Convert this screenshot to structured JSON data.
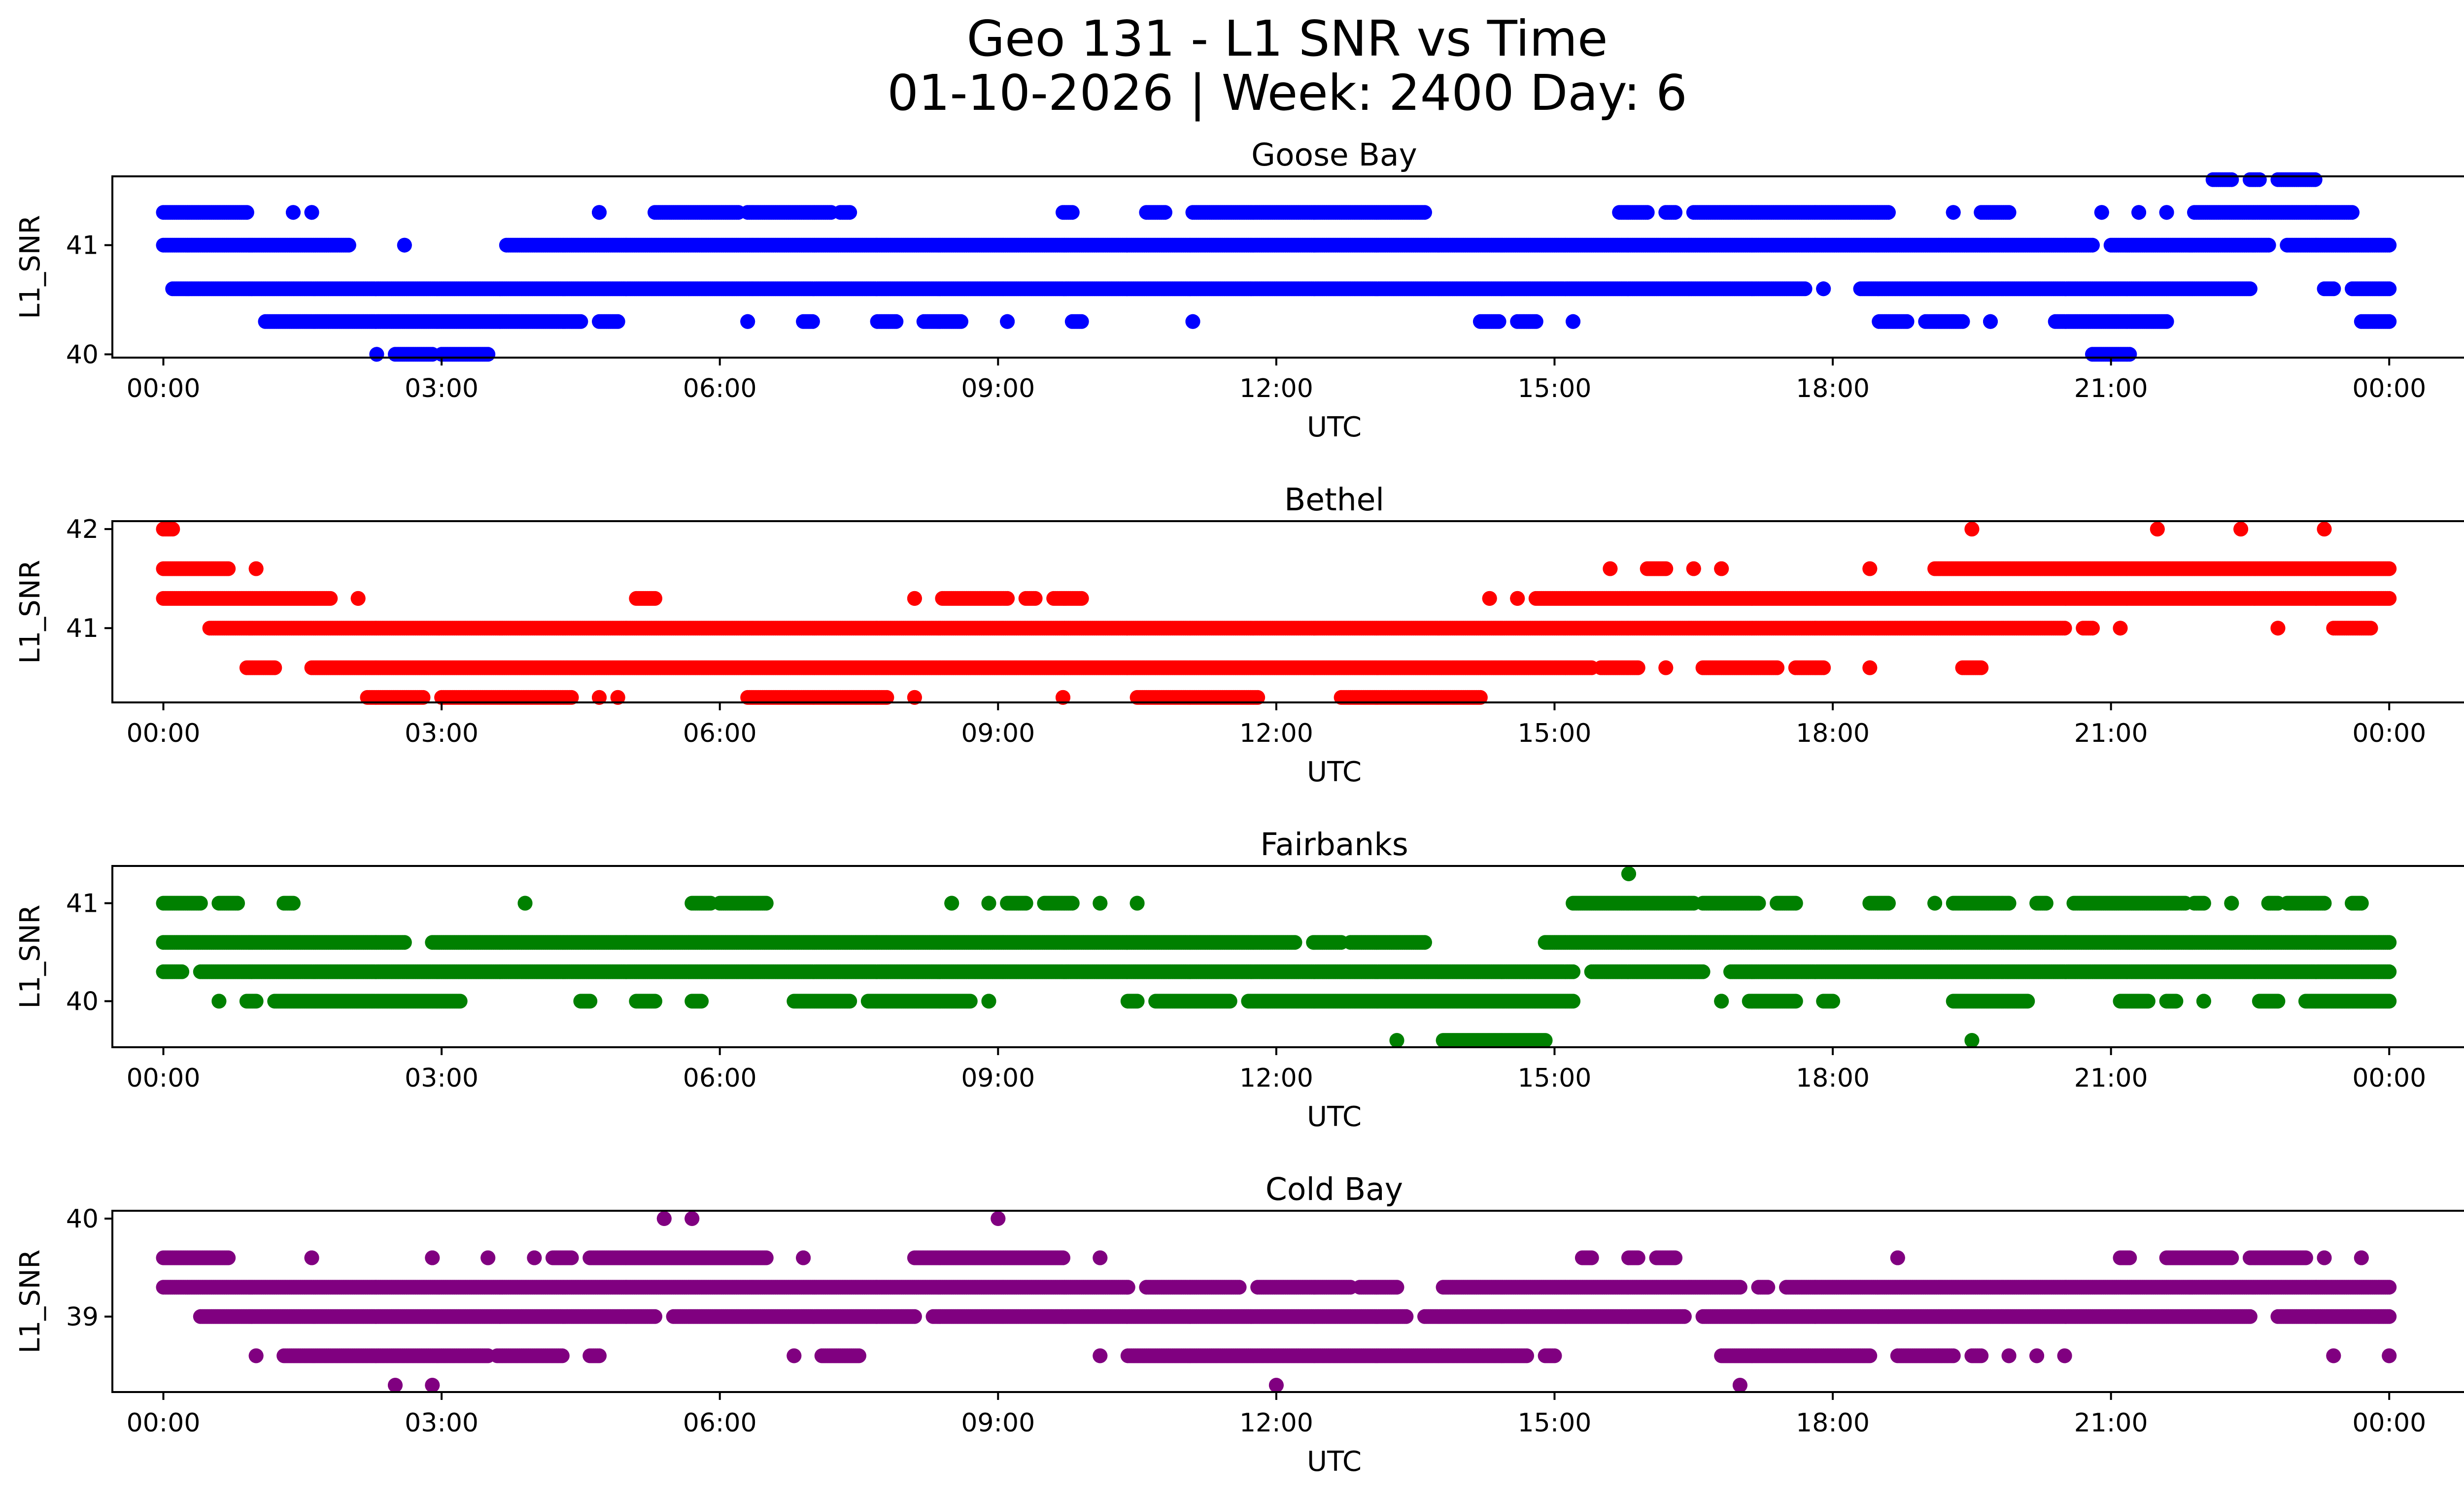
{
  "figure": {
    "title_line1": "Geo 131 - L1 SNR vs Time",
    "title_line2": "01-10-2026 | Week: 2400 Day: 6"
  },
  "chart_data": [
    {
      "type": "scatter",
      "title": "Goose Bay",
      "xlabel": "UTC",
      "ylabel": "L1_SNR",
      "color": "#0000ff",
      "xlim_hours": [
        -0.55,
        25.8
      ],
      "ylim": [
        39.97,
        41.63
      ],
      "x_ticks": [
        0,
        3,
        6,
        9,
        12,
        15,
        18,
        21,
        24
      ],
      "x_tick_labels": [
        "00:00",
        "03:00",
        "06:00",
        "09:00",
        "12:00",
        "15:00",
        "18:00",
        "21:00",
        "00:00"
      ],
      "y_ticks": [
        40,
        41
      ],
      "y_tick_labels": [
        "40",
        "41"
      ],
      "series": [
        {
          "y": 41.6,
          "segments": [
            [
              22.1,
              22.3
            ],
            [
              22.5,
              22.6
            ],
            [
              22.8,
              23.2
            ]
          ]
        },
        {
          "y": 41.3,
          "segments": [
            [
              0.0,
              0.9
            ],
            [
              1.4,
              1.4
            ],
            [
              1.6,
              1.6
            ],
            [
              4.7,
              4.7
            ],
            [
              5.3,
              6.2
            ],
            [
              6.3,
              7.2
            ],
            [
              7.3,
              7.4
            ],
            [
              9.7,
              9.8
            ],
            [
              10.6,
              10.8
            ],
            [
              11.1,
              13.6
            ],
            [
              15.7,
              16.0
            ],
            [
              16.2,
              16.3
            ],
            [
              16.5,
              18.6
            ],
            [
              19.3,
              19.3
            ],
            [
              19.6,
              19.9
            ],
            [
              20.9,
              20.9
            ],
            [
              21.3,
              21.3
            ],
            [
              21.6,
              21.6
            ],
            [
              21.9,
              23.6
            ]
          ]
        },
        {
          "y": 41.0,
          "segments": [
            [
              0.0,
              2.0
            ],
            [
              2.6,
              2.6
            ],
            [
              3.7,
              20.8
            ],
            [
              21.0,
              22.7
            ],
            [
              22.9,
              24.0
            ]
          ]
        },
        {
          "y": 40.6,
          "segments": [
            [
              0.1,
              17.7
            ],
            [
              17.9,
              17.9
            ],
            [
              18.3,
              22.5
            ],
            [
              23.3,
              23.4
            ],
            [
              23.6,
              24.0
            ]
          ]
        },
        {
          "y": 40.3,
          "segments": [
            [
              1.1,
              4.5
            ],
            [
              4.7,
              4.9
            ],
            [
              6.3,
              6.3
            ],
            [
              6.9,
              7.0
            ],
            [
              7.7,
              7.9
            ],
            [
              8.2,
              8.6
            ],
            [
              9.1,
              9.1
            ],
            [
              9.8,
              9.9
            ],
            [
              11.1,
              11.1
            ],
            [
              14.2,
              14.4
            ],
            [
              14.6,
              14.8
            ],
            [
              15.2,
              15.2
            ],
            [
              18.5,
              18.8
            ],
            [
              19.0,
              19.4
            ],
            [
              19.7,
              19.7
            ],
            [
              20.4,
              21.6
            ],
            [
              23.7,
              24.0
            ]
          ]
        },
        {
          "y": 40.0,
          "segments": [
            [
              2.3,
              2.3
            ],
            [
              2.5,
              2.9
            ],
            [
              3.0,
              3.5
            ]
          ]
        },
        {
          "y": 40.0,
          "segments": [
            [
              20.8,
              21.2
            ]
          ]
        }
      ]
    },
    {
      "type": "scatter",
      "title": "Bethel",
      "xlabel": "UTC",
      "ylabel": "L1_SNR",
      "color": "#ff0000",
      "xlim_hours": [
        -0.55,
        25.8
      ],
      "ylim": [
        40.25,
        42.08
      ],
      "x_ticks": [
        0,
        3,
        6,
        9,
        12,
        15,
        18,
        21,
        24
      ],
      "x_tick_labels": [
        "00:00",
        "03:00",
        "06:00",
        "09:00",
        "12:00",
        "15:00",
        "18:00",
        "21:00",
        "00:00"
      ],
      "y_ticks": [
        41,
        42
      ],
      "y_tick_labels": [
        "41",
        "42"
      ],
      "series": [
        {
          "y": 42.0,
          "segments": [
            [
              0.0,
              0.1
            ],
            [
              19.5,
              19.5
            ],
            [
              21.5,
              21.5
            ],
            [
              22.4,
              22.4
            ],
            [
              23.3,
              23.3
            ]
          ]
        },
        {
          "y": 41.6,
          "segments": [
            [
              0.0,
              0.7
            ],
            [
              1.0,
              1.0
            ],
            [
              15.6,
              15.6
            ],
            [
              16.0,
              16.2
            ],
            [
              16.5,
              16.5
            ],
            [
              16.8,
              16.8
            ],
            [
              18.4,
              18.4
            ],
            [
              19.1,
              24.0
            ]
          ]
        },
        {
          "y": 41.3,
          "segments": [
            [
              0.0,
              1.8
            ],
            [
              2.1,
              2.1
            ],
            [
              5.1,
              5.3
            ],
            [
              8.1,
              8.1
            ],
            [
              8.4,
              9.1
            ],
            [
              9.3,
              9.4
            ],
            [
              9.6,
              9.9
            ],
            [
              14.3,
              14.3
            ],
            [
              14.6,
              14.6
            ],
            [
              14.8,
              24.0
            ]
          ]
        },
        {
          "y": 41.0,
          "segments": [
            [
              0.5,
              20.5
            ],
            [
              20.7,
              20.8
            ],
            [
              21.1,
              21.1
            ],
            [
              22.8,
              22.8
            ],
            [
              23.4,
              23.8
            ]
          ]
        },
        {
          "y": 40.6,
          "segments": [
            [
              0.9,
              1.2
            ],
            [
              1.6,
              15.4
            ],
            [
              15.5,
              15.9
            ],
            [
              16.2,
              16.2
            ],
            [
              16.6,
              17.4
            ],
            [
              17.6,
              17.9
            ],
            [
              18.4,
              18.4
            ],
            [
              19.4,
              19.6
            ]
          ]
        },
        {
          "y": 40.3,
          "segments": [
            [
              2.2,
              2.8
            ],
            [
              3.0,
              4.4
            ],
            [
              4.7,
              4.7
            ],
            [
              4.9,
              4.9
            ],
            [
              6.3,
              7.8
            ],
            [
              8.1,
              8.1
            ],
            [
              9.7,
              9.7
            ],
            [
              10.5,
              11.8
            ],
            [
              12.7,
              14.2
            ]
          ]
        }
      ]
    },
    {
      "type": "scatter",
      "title": "Fairbanks",
      "xlabel": "UTC",
      "ylabel": "L1_SNR",
      "color": "#008000",
      "xlim_hours": [
        -0.55,
        25.8
      ],
      "ylim": [
        39.53,
        41.38
      ],
      "x_ticks": [
        0,
        3,
        6,
        9,
        12,
        15,
        18,
        21,
        24
      ],
      "x_tick_labels": [
        "00:00",
        "03:00",
        "06:00",
        "09:00",
        "12:00",
        "15:00",
        "18:00",
        "21:00",
        "00:00"
      ],
      "y_ticks": [
        40,
        41
      ],
      "y_tick_labels": [
        "40",
        "41"
      ],
      "series": [
        {
          "y": 41.3,
          "segments": [
            [
              15.8,
              15.8
            ]
          ]
        },
        {
          "y": 41.0,
          "segments": [
            [
              0.0,
              0.4
            ],
            [
              0.6,
              0.8
            ],
            [
              1.3,
              1.4
            ],
            [
              3.9,
              3.9
            ],
            [
              5.7,
              5.9
            ],
            [
              6.0,
              6.5
            ],
            [
              8.5,
              8.5
            ],
            [
              8.9,
              8.9
            ],
            [
              9.1,
              9.3
            ],
            [
              9.5,
              9.8
            ],
            [
              10.1,
              10.1
            ],
            [
              10.5,
              10.5
            ],
            [
              15.2,
              16.5
            ],
            [
              16.6,
              17.2
            ],
            [
              17.4,
              17.6
            ],
            [
              18.4,
              18.6
            ],
            [
              19.1,
              19.1
            ],
            [
              19.3,
              19.9
            ],
            [
              20.2,
              20.3
            ],
            [
              20.6,
              21.8
            ],
            [
              21.9,
              22.0
            ],
            [
              22.3,
              22.3
            ],
            [
              22.7,
              22.8
            ],
            [
              22.9,
              23.3
            ],
            [
              23.6,
              23.7
            ]
          ]
        },
        {
          "y": 40.6,
          "segments": [
            [
              0.0,
              2.6
            ],
            [
              2.9,
              12.2
            ],
            [
              12.4,
              12.7
            ],
            [
              12.8,
              13.6
            ],
            [
              14.9,
              24.0
            ]
          ]
        },
        {
          "y": 40.3,
          "segments": [
            [
              0.0,
              0.2
            ],
            [
              0.4,
              15.2
            ],
            [
              15.4,
              16.6
            ],
            [
              16.9,
              24.0
            ]
          ]
        },
        {
          "y": 40.0,
          "segments": [
            [
              0.6,
              0.6
            ],
            [
              0.9,
              1.0
            ],
            [
              1.2,
              3.2
            ],
            [
              4.5,
              4.6
            ],
            [
              5.1,
              5.3
            ],
            [
              5.7,
              5.8
            ],
            [
              6.8,
              7.4
            ],
            [
              7.6,
              8.7
            ],
            [
              8.9,
              8.9
            ],
            [
              10.4,
              10.5
            ],
            [
              10.7,
              11.5
            ],
            [
              11.7,
              15.2
            ],
            [
              16.8,
              16.8
            ],
            [
              17.1,
              17.6
            ],
            [
              17.9,
              18.0
            ],
            [
              19.3,
              20.1
            ],
            [
              21.1,
              21.4
            ],
            [
              21.6,
              21.7
            ],
            [
              22.0,
              22.0
            ],
            [
              22.6,
              22.8
            ],
            [
              23.1,
              24.0
            ]
          ]
        },
        {
          "y": 39.6,
          "segments": [
            [
              13.3,
              13.3
            ],
            [
              13.8,
              14.9
            ],
            [
              19.5,
              19.5
            ]
          ]
        }
      ]
    },
    {
      "type": "scatter",
      "title": "Cold Bay",
      "xlabel": "UTC",
      "ylabel": "L1_SNR",
      "color": "#800080",
      "xlim_hours": [
        -0.55,
        25.8
      ],
      "ylim": [
        38.23,
        40.08
      ],
      "x_ticks": [
        0,
        3,
        6,
        9,
        12,
        15,
        18,
        21,
        24
      ],
      "x_tick_labels": [
        "00:00",
        "03:00",
        "06:00",
        "09:00",
        "12:00",
        "15:00",
        "18:00",
        "21:00",
        "00:00"
      ],
      "y_ticks": [
        39,
        40
      ],
      "y_tick_labels": [
        "39",
        "40"
      ],
      "series": [
        {
          "y": 40.0,
          "segments": [
            [
              5.4,
              5.4
            ],
            [
              5.7,
              5.7
            ],
            [
              9.0,
              9.0
            ]
          ]
        },
        {
          "y": 39.6,
          "segments": [
            [
              0.0,
              0.7
            ],
            [
              1.6,
              1.6
            ],
            [
              2.9,
              2.9
            ],
            [
              3.5,
              3.5
            ],
            [
              4.0,
              4.0
            ],
            [
              4.2,
              4.4
            ],
            [
              4.6,
              6.5
            ],
            [
              6.9,
              6.9
            ],
            [
              8.1,
              9.7
            ],
            [
              10.1,
              10.1
            ],
            [
              15.3,
              15.4
            ],
            [
              15.8,
              15.9
            ],
            [
              16.1,
              16.3
            ],
            [
              18.7,
              18.7
            ],
            [
              21.1,
              21.2
            ],
            [
              21.6,
              22.3
            ],
            [
              22.5,
              23.1
            ],
            [
              23.3,
              23.3
            ],
            [
              23.7,
              23.7
            ]
          ]
        },
        {
          "y": 39.3,
          "segments": [
            [
              0.0,
              10.4
            ],
            [
              10.6,
              11.6
            ],
            [
              11.8,
              12.8
            ],
            [
              12.9,
              13.3
            ],
            [
              13.8,
              17.0
            ],
            [
              17.2,
              17.3
            ],
            [
              17.5,
              24.0
            ]
          ]
        },
        {
          "y": 39.0,
          "segments": [
            [
              0.4,
              5.3
            ],
            [
              5.5,
              8.1
            ],
            [
              8.3,
              13.4
            ],
            [
              13.6,
              16.4
            ],
            [
              16.6,
              22.5
            ],
            [
              22.8,
              24.0
            ]
          ]
        },
        {
          "y": 38.6,
          "segments": [
            [
              1.0,
              1.0
            ],
            [
              1.3,
              3.5
            ],
            [
              3.6,
              4.3
            ],
            [
              4.6,
              4.7
            ],
            [
              6.8,
              6.8
            ],
            [
              7.1,
              7.5
            ],
            [
              10.1,
              10.1
            ],
            [
              10.4,
              14.7
            ],
            [
              14.9,
              15.0
            ],
            [
              16.8,
              18.4
            ],
            [
              18.7,
              19.3
            ],
            [
              19.5,
              19.6
            ],
            [
              19.9,
              19.9
            ],
            [
              20.2,
              20.2
            ],
            [
              20.5,
              20.5
            ],
            [
              23.4,
              23.4
            ],
            [
              24.0,
              24.0
            ]
          ]
        },
        {
          "y": 38.3,
          "segments": [
            [
              2.5,
              2.5
            ],
            [
              2.9,
              2.9
            ],
            [
              12.0,
              12.0
            ],
            [
              17.0,
              17.0
            ]
          ]
        }
      ]
    }
  ]
}
